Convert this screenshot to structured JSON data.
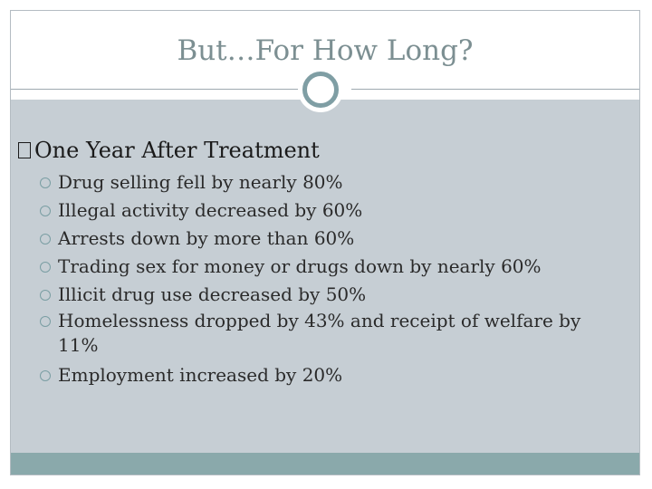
{
  "slide": {
    "title": "But…For How Long?",
    "heading_glyph": "",
    "heading": "One Year After Treatment",
    "bullets": [
      "Drug selling fell by nearly 80%",
      "Illegal activity decreased by 60%",
      "Arrests down by more than 60%",
      "Trading sex for money or drugs down by nearly 60%",
      "Illicit drug use decreased by 50%",
      "Homelessness dropped by 43% and receipt of welfare by 11%",
      "Employment increased by 20%"
    ]
  },
  "colors": {
    "title": "#7c8f92",
    "content_background": "#c6ced4",
    "footer_bar": "#8aa9ab",
    "ring": "#7f9ea4"
  }
}
